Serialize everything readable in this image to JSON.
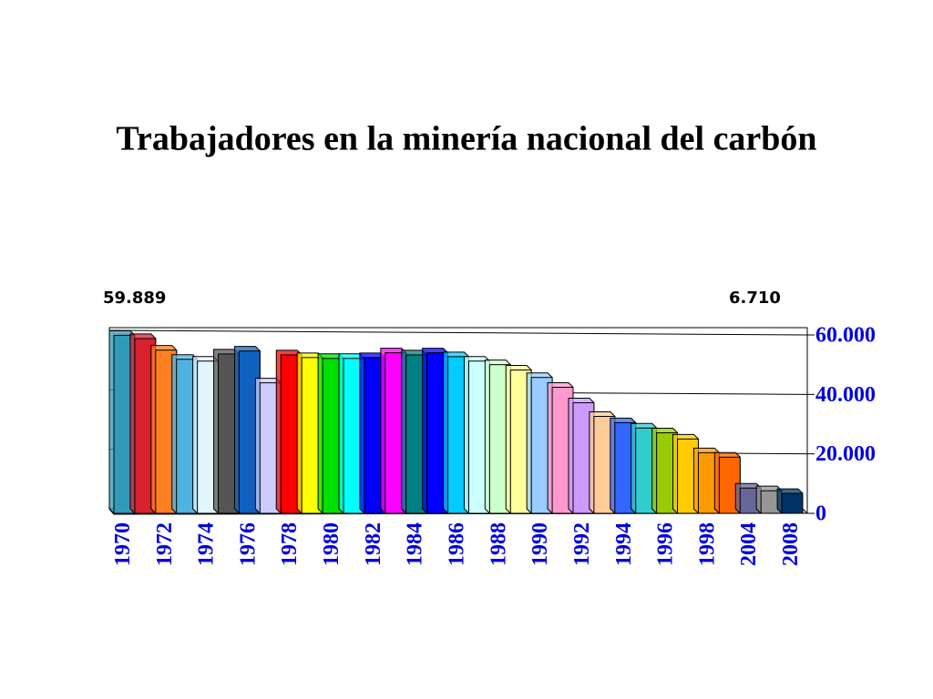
{
  "chart_data": {
    "type": "bar3d",
    "title": "Trabajadores en la minería nacional del carbón",
    "annotations": [
      "59.889",
      "6.710"
    ],
    "categories": [
      "1970",
      null,
      "1972",
      null,
      "1974",
      null,
      "1976",
      null,
      "1978",
      null,
      "1980",
      null,
      "1982",
      null,
      "1984",
      null,
      "1986",
      null,
      "1988",
      null,
      "1990",
      null,
      "1992",
      null,
      "1994",
      null,
      "1996",
      null,
      "1998",
      null,
      "2004",
      null,
      "2008"
    ],
    "values": [
      59889,
      58800,
      54900,
      51800,
      51200,
      53600,
      54600,
      43900,
      53300,
      52400,
      52100,
      52100,
      52400,
      54000,
      53300,
      54000,
      52700,
      51200,
      50000,
      48200,
      45700,
      42400,
      37200,
      32600,
      30500,
      28700,
      27100,
      25000,
      20400,
      18900,
      8500,
      7600,
      6710
    ],
    "colors": [
      "#2f9bb8",
      "#d9202f",
      "#ff8020",
      "#4fb3e0",
      "#e0f6fb",
      "#555555",
      "#1060c0",
      "#ccccff",
      "#ff0000",
      "#ffff00",
      "#00e000",
      "#00ffff",
      "#0000ff",
      "#ff00ff",
      "#008080",
      "#0000ff",
      "#00ccff",
      "#ccffff",
      "#ccffcc",
      "#ffff99",
      "#99ccff",
      "#ff99cc",
      "#cc99ff",
      "#ffcc99",
      "#3366ff",
      "#33cccc",
      "#99cc00",
      "#ffcc00",
      "#ff9900",
      "#ff6600",
      "#666699",
      "#969696",
      "#003366"
    ],
    "ylim": [
      0,
      60000
    ],
    "yticks": [
      {
        "value": 0,
        "label": "0"
      },
      {
        "value": 20000,
        "label": "20.000"
      },
      {
        "value": 40000,
        "label": "40.000"
      },
      {
        "value": 60000,
        "label": "60.000"
      }
    ],
    "grid": true
  }
}
